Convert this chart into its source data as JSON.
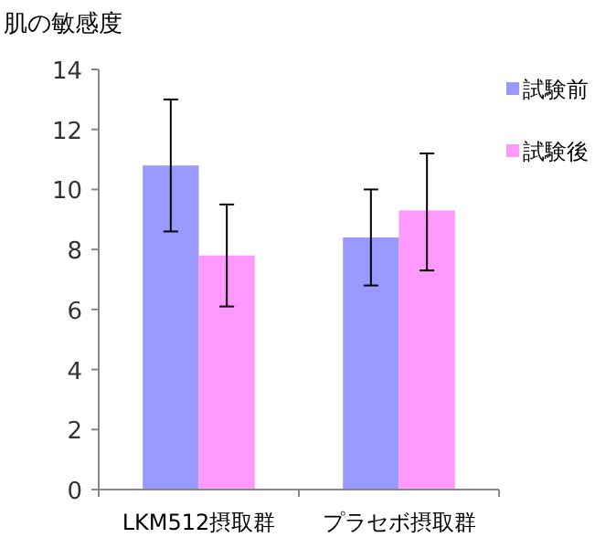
{
  "chart_data": {
    "type": "bar",
    "ylabel": "肌の敏感度",
    "categories": [
      "LKM512摂取群",
      "プラセボ摂取群"
    ],
    "series": [
      {
        "name": "試験前",
        "color": "#9999ff",
        "values": [
          10.8,
          8.4
        ],
        "errors": [
          [
            8.6,
            13.0
          ],
          [
            6.8,
            10.0
          ]
        ]
      },
      {
        "name": "試験後",
        "color": "#ff99ff",
        "values": [
          7.8,
          9.3
        ],
        "errors": [
          [
            6.1,
            9.5
          ],
          [
            7.3,
            11.2
          ]
        ]
      }
    ],
    "ylim": [
      0,
      14
    ],
    "yticks": [
      0,
      2,
      4,
      6,
      8,
      10,
      12,
      14
    ],
    "legend": "top right",
    "grid": false
  }
}
